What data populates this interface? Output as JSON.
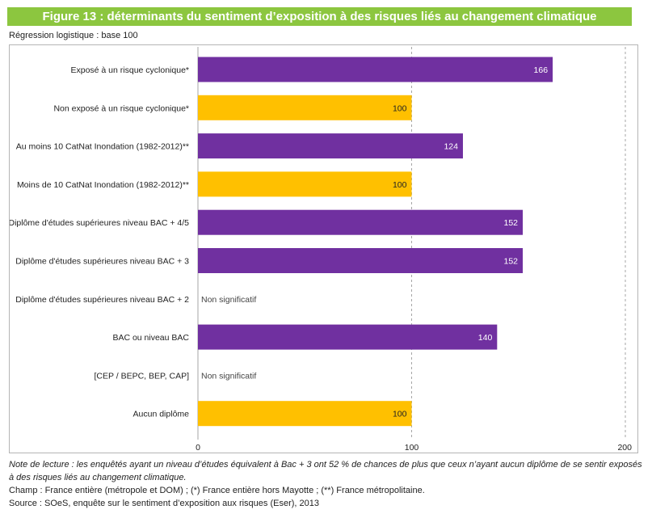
{
  "header": {
    "title": "Figure 13 : déterminants du sentiment d’exposition à des risques liés au changement climatique"
  },
  "subtitle": "Régression logistique : base 100",
  "colors": {
    "header": "#8cc63f",
    "purple": "#7030a0",
    "gold": "#ffc000",
    "grid": "#a6a6a6",
    "frame": "#b5b5b5"
  },
  "chart_data": {
    "type": "bar",
    "orientation": "horizontal",
    "xlim": [
      0,
      200
    ],
    "xticks": [
      "0",
      "100",
      "200"
    ],
    "grid": "vertical dashed at 100 and 200",
    "categories": [
      "Exposé à un risque cyclonique*",
      "Non exposé à un risque cyclonique*",
      "Au moins 10 CatNat Inondation (1982-2012)**",
      "Moins de 10 CatNat Inondation (1982-2012)**",
      "Diplôme d'études supérieures niveau BAC + 4/5",
      "Diplôme d'études supérieures niveau BAC + 3",
      "Diplôme d'études supérieures niveau BAC + 2",
      "BAC ou niveau BAC",
      "[CEP / BEPC, BEP, CAP]",
      "Aucun diplôme"
    ],
    "values": [
      166,
      100,
      124,
      100,
      152,
      152,
      null,
      140,
      null,
      100
    ],
    "labels": [
      "166",
      "100",
      "124",
      "100",
      "152",
      "152",
      "Non significatif",
      "140",
      "Non significatif",
      "100"
    ],
    "bar_colors": [
      "purple",
      "gold",
      "purple",
      "gold",
      "purple",
      "purple",
      null,
      "purple",
      null,
      "gold"
    ]
  },
  "notes": {
    "lecture": "Note de lecture : les enquêtés ayant un niveau d’études équivalent à Bac + 3 ont 52 % de chances de plus que ceux n’ayant aucun diplôme de se sentir exposés à des risques liés au changement climatique.",
    "champ": "Champ : France entière (métropole et DOM) ; (*) France entière hors Mayotte ; (**) France métropolitaine.",
    "source": "Source : SOeS, enquête sur le sentiment d’exposition aux risques (Eser), 2013"
  }
}
